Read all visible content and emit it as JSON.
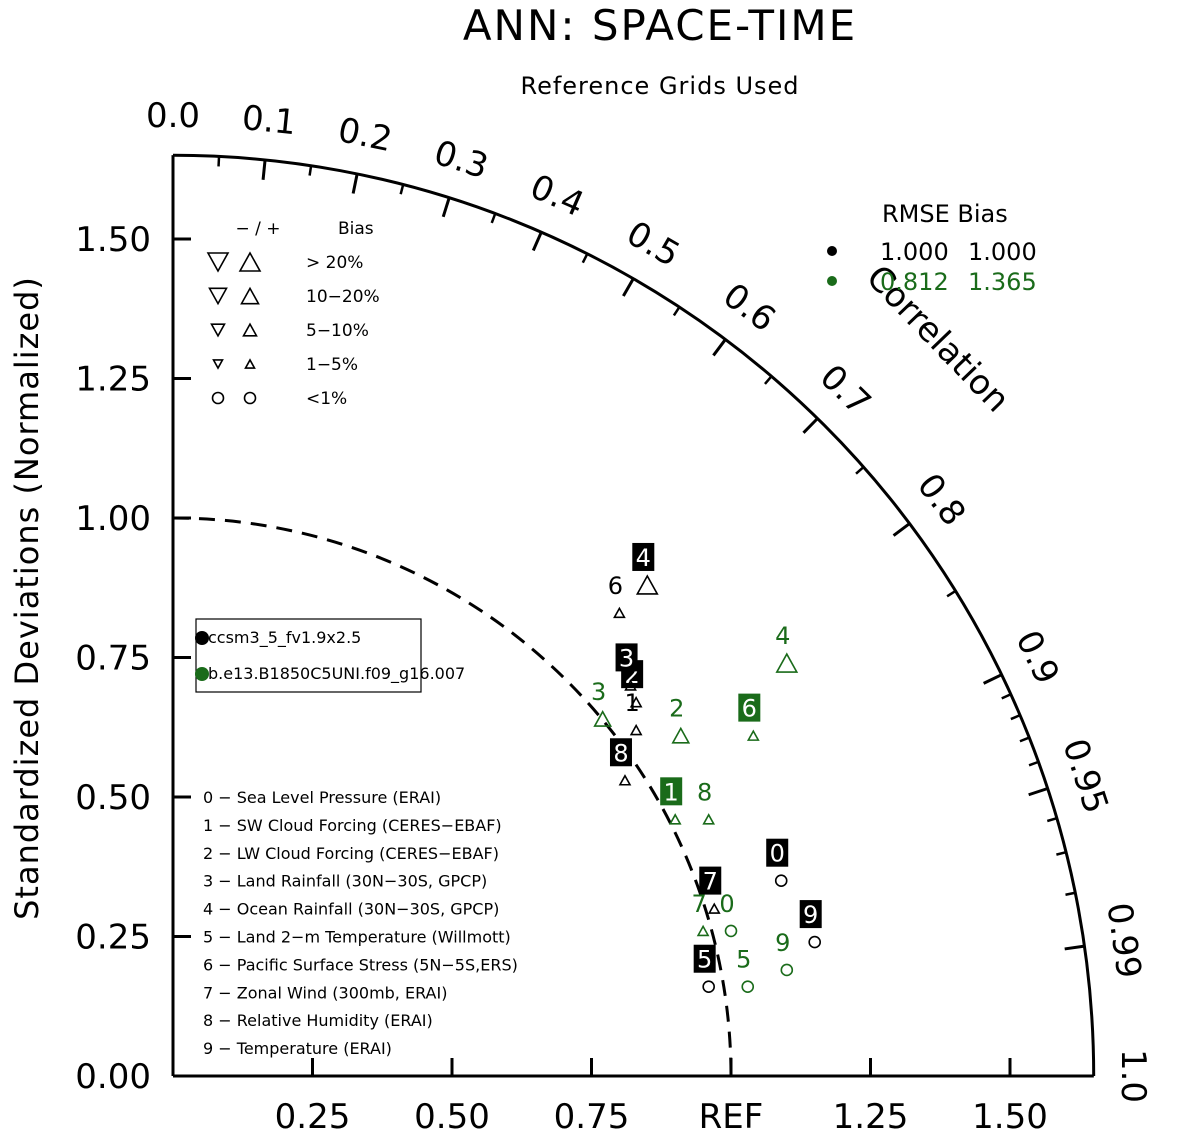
{
  "chart_data": {
    "type": "scatter",
    "title": "ANN: SPACE-TIME",
    "subtitle": "Reference Grids Used",
    "ylabel": "Standardized Deviations (Normalized)",
    "correlation_label": "Correlation",
    "ref_label": "REF",
    "ylim": [
      0,
      1.65
    ],
    "y_tick_labels": [
      "0.00",
      "0.25",
      "0.50",
      "0.75",
      "1.00",
      "1.25",
      "1.50"
    ],
    "x_tick_labels": [
      "0.25",
      "0.50",
      "0.75",
      "REF",
      "1.25",
      "1.50"
    ],
    "corr_tick_labels": [
      "0.0",
      "0.1",
      "0.2",
      "0.3",
      "0.4",
      "0.5",
      "0.6",
      "0.7",
      "0.8",
      "0.9",
      "0.95",
      "0.99",
      "1.0"
    ],
    "bias_key": {
      "header_signs": "− / +",
      "header_label": "Bias",
      "rows": [
        "> 20%",
        "10−20%",
        "5−10%",
        "1−5%",
        "<1%"
      ]
    },
    "rmse_table": {
      "header": "RMSE  Bias",
      "rows": [
        {
          "rmse": "1.000",
          "bias": "1.000",
          "color": "#000000"
        },
        {
          "rmse": "0.812",
          "bias": "1.365",
          "color": "#1a6b1a"
        }
      ]
    },
    "series": [
      {
        "name": "ccsm3_5_fv1.9x2.5",
        "color": "#000000",
        "points": [
          {
            "id": "0",
            "x": 1.09,
            "y": 0.35,
            "marker": "circle"
          },
          {
            "id": "1",
            "x": 0.83,
            "y": 0.62,
            "marker": "tri-small"
          },
          {
            "id": "2",
            "x": 0.83,
            "y": 0.67,
            "marker": "tri-small"
          },
          {
            "id": "3",
            "x": 0.82,
            "y": 0.7,
            "marker": "tri-small"
          },
          {
            "id": "4",
            "x": 0.85,
            "y": 0.88,
            "marker": "tri-large"
          },
          {
            "id": "5",
            "x": 0.96,
            "y": 0.16,
            "marker": "circle"
          },
          {
            "id": "6",
            "x": 0.8,
            "y": 0.83,
            "marker": "tri-small"
          },
          {
            "id": "7",
            "x": 0.97,
            "y": 0.3,
            "marker": "tri-small"
          },
          {
            "id": "8",
            "x": 0.81,
            "y": 0.53,
            "marker": "tri-small"
          },
          {
            "id": "9",
            "x": 1.15,
            "y": 0.24,
            "marker": "circle"
          }
        ]
      },
      {
        "name": "b.e13.B1850C5UNI.f09_g16.007",
        "color": "#1a6b1a",
        "points": [
          {
            "id": "0",
            "x": 1.0,
            "y": 0.26,
            "marker": "circle"
          },
          {
            "id": "1",
            "x": 0.9,
            "y": 0.46,
            "marker": "tri-small"
          },
          {
            "id": "2",
            "x": 0.91,
            "y": 0.61,
            "marker": "tri-med"
          },
          {
            "id": "3",
            "x": 0.77,
            "y": 0.64,
            "marker": "tri-med"
          },
          {
            "id": "4",
            "x": 1.1,
            "y": 0.74,
            "marker": "tri-large"
          },
          {
            "id": "5",
            "x": 1.03,
            "y": 0.16,
            "marker": "circle"
          },
          {
            "id": "6",
            "x": 1.04,
            "y": 0.61,
            "marker": "tri-small"
          },
          {
            "id": "7",
            "x": 0.95,
            "y": 0.26,
            "marker": "tri-small"
          },
          {
            "id": "8",
            "x": 0.96,
            "y": 0.46,
            "marker": "tri-small"
          },
          {
            "id": "9",
            "x": 1.1,
            "y": 0.19,
            "marker": "circle"
          }
        ]
      }
    ],
    "boxed_labels": {
      "0": [
        "0",
        "2",
        "3",
        "4",
        "5",
        "7",
        "8",
        "9"
      ],
      "1": [
        "1",
        "6"
      ]
    },
    "variables": [
      "0 − Sea Level Pressure (ERAI)",
      "1 − SW Cloud Forcing (CERES−EBAF)",
      "2 − LW Cloud Forcing (CERES−EBAF)",
      "3 − Land Rainfall (30N−30S, GPCP)",
      "4 − Ocean Rainfall (30N−30S, GPCP)",
      "5 − Land 2−m Temperature (Willmott)",
      "6 − Pacific Surface Stress (5N−5S,ERS)",
      "7 − Zonal Wind (300mb, ERAI)",
      "8 − Relative Humidity (ERAI)",
      "9 − Temperature (ERAI)"
    ]
  }
}
